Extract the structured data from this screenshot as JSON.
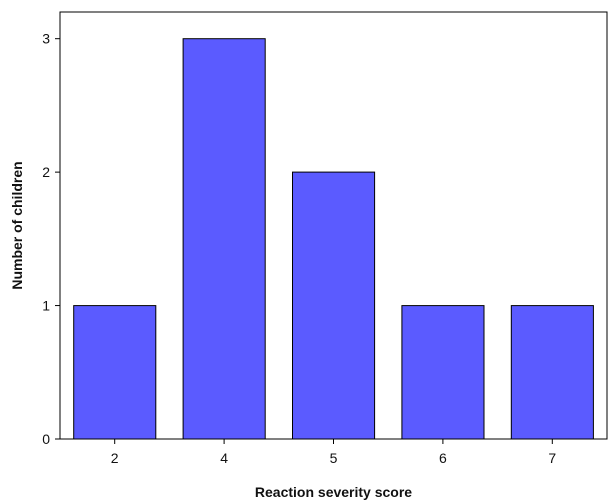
{
  "chart_data": {
    "type": "bar",
    "title": "",
    "xlabel": "Reaction severity score",
    "ylabel": "Number of children",
    "categories": [
      "2",
      "4",
      "5",
      "6",
      "7"
    ],
    "values": [
      1,
      3,
      2,
      1,
      1
    ],
    "ylim": [
      0,
      3.2
    ],
    "yticks": [
      0,
      1,
      2,
      3
    ],
    "grid": false,
    "bar_color": "#5b5bff",
    "bar_edge_color": "#000000"
  }
}
